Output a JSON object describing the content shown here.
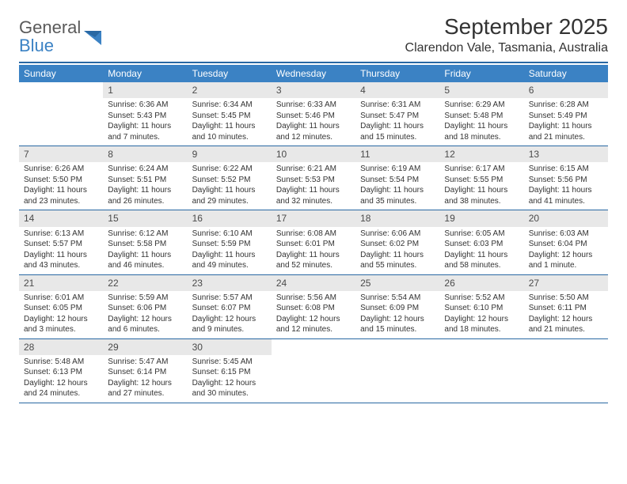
{
  "logo": {
    "word1": "General",
    "word2": "Blue"
  },
  "title": "September 2025",
  "location": "Clarendon Vale, Tasmania, Australia",
  "colors": {
    "header_bg": "#3b82c4",
    "header_text": "#ffffff",
    "rule": "#2968a3",
    "daynum_bg": "#e8e8e8",
    "text": "#333333",
    "logo_gray": "#5a5a5a",
    "logo_blue": "#3b82c4"
  },
  "day_names": [
    "Sunday",
    "Monday",
    "Tuesday",
    "Wednesday",
    "Thursday",
    "Friday",
    "Saturday"
  ],
  "weeks": [
    [
      {
        "blank": true
      },
      {
        "n": "1",
        "sunrise": "6:36 AM",
        "sunset": "5:43 PM",
        "dh": "11",
        "dm": "7"
      },
      {
        "n": "2",
        "sunrise": "6:34 AM",
        "sunset": "5:45 PM",
        "dh": "11",
        "dm": "10"
      },
      {
        "n": "3",
        "sunrise": "6:33 AM",
        "sunset": "5:46 PM",
        "dh": "11",
        "dm": "12"
      },
      {
        "n": "4",
        "sunrise": "6:31 AM",
        "sunset": "5:47 PM",
        "dh": "11",
        "dm": "15"
      },
      {
        "n": "5",
        "sunrise": "6:29 AM",
        "sunset": "5:48 PM",
        "dh": "11",
        "dm": "18"
      },
      {
        "n": "6",
        "sunrise": "6:28 AM",
        "sunset": "5:49 PM",
        "dh": "11",
        "dm": "21"
      }
    ],
    [
      {
        "n": "7",
        "sunrise": "6:26 AM",
        "sunset": "5:50 PM",
        "dh": "11",
        "dm": "23"
      },
      {
        "n": "8",
        "sunrise": "6:24 AM",
        "sunset": "5:51 PM",
        "dh": "11",
        "dm": "26"
      },
      {
        "n": "9",
        "sunrise": "6:22 AM",
        "sunset": "5:52 PM",
        "dh": "11",
        "dm": "29"
      },
      {
        "n": "10",
        "sunrise": "6:21 AM",
        "sunset": "5:53 PM",
        "dh": "11",
        "dm": "32"
      },
      {
        "n": "11",
        "sunrise": "6:19 AM",
        "sunset": "5:54 PM",
        "dh": "11",
        "dm": "35"
      },
      {
        "n": "12",
        "sunrise": "6:17 AM",
        "sunset": "5:55 PM",
        "dh": "11",
        "dm": "38"
      },
      {
        "n": "13",
        "sunrise": "6:15 AM",
        "sunset": "5:56 PM",
        "dh": "11",
        "dm": "41"
      }
    ],
    [
      {
        "n": "14",
        "sunrise": "6:13 AM",
        "sunset": "5:57 PM",
        "dh": "11",
        "dm": "43"
      },
      {
        "n": "15",
        "sunrise": "6:12 AM",
        "sunset": "5:58 PM",
        "dh": "11",
        "dm": "46"
      },
      {
        "n": "16",
        "sunrise": "6:10 AM",
        "sunset": "5:59 PM",
        "dh": "11",
        "dm": "49"
      },
      {
        "n": "17",
        "sunrise": "6:08 AM",
        "sunset": "6:01 PM",
        "dh": "11",
        "dm": "52"
      },
      {
        "n": "18",
        "sunrise": "6:06 AM",
        "sunset": "6:02 PM",
        "dh": "11",
        "dm": "55"
      },
      {
        "n": "19",
        "sunrise": "6:05 AM",
        "sunset": "6:03 PM",
        "dh": "11",
        "dm": "58"
      },
      {
        "n": "20",
        "sunrise": "6:03 AM",
        "sunset": "6:04 PM",
        "dh": "12",
        "dm": "1",
        "dm_unit": "minute"
      }
    ],
    [
      {
        "n": "21",
        "sunrise": "6:01 AM",
        "sunset": "6:05 PM",
        "dh": "12",
        "dm": "3"
      },
      {
        "n": "22",
        "sunrise": "5:59 AM",
        "sunset": "6:06 PM",
        "dh": "12",
        "dm": "6"
      },
      {
        "n": "23",
        "sunrise": "5:57 AM",
        "sunset": "6:07 PM",
        "dh": "12",
        "dm": "9"
      },
      {
        "n": "24",
        "sunrise": "5:56 AM",
        "sunset": "6:08 PM",
        "dh": "12",
        "dm": "12"
      },
      {
        "n": "25",
        "sunrise": "5:54 AM",
        "sunset": "6:09 PM",
        "dh": "12",
        "dm": "15"
      },
      {
        "n": "26",
        "sunrise": "5:52 AM",
        "sunset": "6:10 PM",
        "dh": "12",
        "dm": "18"
      },
      {
        "n": "27",
        "sunrise": "5:50 AM",
        "sunset": "6:11 PM",
        "dh": "12",
        "dm": "21"
      }
    ],
    [
      {
        "n": "28",
        "sunrise": "5:48 AM",
        "sunset": "6:13 PM",
        "dh": "12",
        "dm": "24"
      },
      {
        "n": "29",
        "sunrise": "5:47 AM",
        "sunset": "6:14 PM",
        "dh": "12",
        "dm": "27"
      },
      {
        "n": "30",
        "sunrise": "5:45 AM",
        "sunset": "6:15 PM",
        "dh": "12",
        "dm": "30"
      },
      {
        "blank": true
      },
      {
        "blank": true
      },
      {
        "blank": true
      },
      {
        "blank": true
      }
    ]
  ],
  "labels": {
    "sunrise": "Sunrise:",
    "sunset": "Sunset:",
    "daylight": "Daylight:",
    "hours": "hours",
    "and": "and",
    "minutes": "minutes."
  }
}
